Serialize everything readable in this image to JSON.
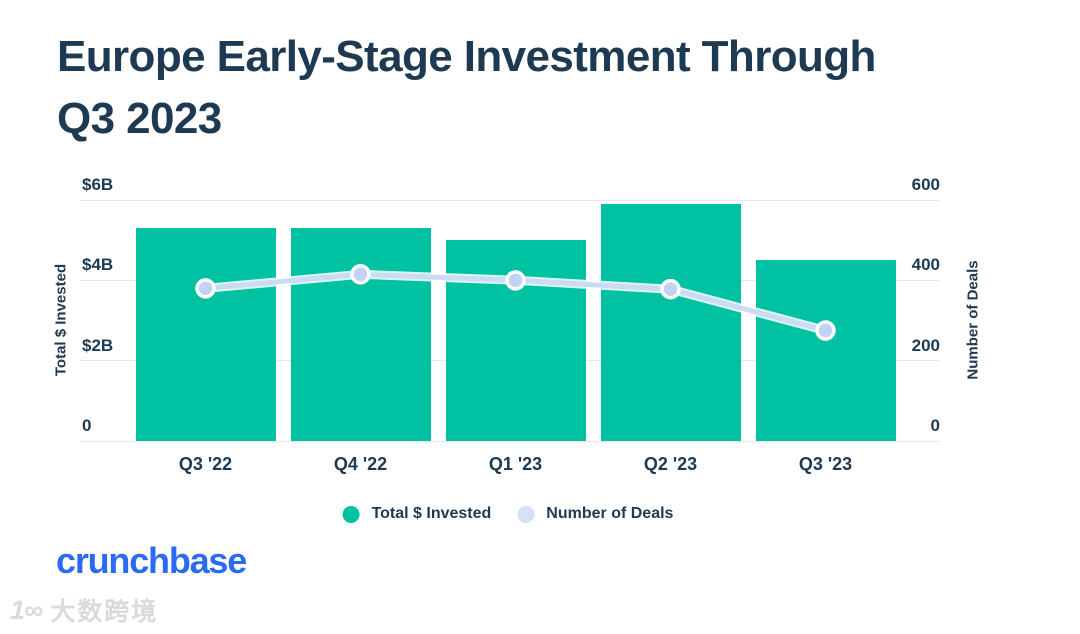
{
  "title": {
    "text": "Europe Early-Stage Investment Through Q3 2023",
    "line1": "Europe Early-Stage Investment Through",
    "line2": "Q3 2023"
  },
  "chart_data": {
    "type": "combo",
    "title": "Europe Early-Stage Investment Through Q3 2023",
    "categories": [
      "Q3 '22",
      "Q4 '22",
      "Q1 '23",
      "Q2 '23",
      "Q3 '23"
    ],
    "series": [
      {
        "name": "Total $ Invested",
        "chart": "bar",
        "axis": "left",
        "unit": "USD billions",
        "values": [
          5.3,
          5.3,
          5.0,
          5.9,
          4.5
        ],
        "color": "#00c1a2"
      },
      {
        "name": "Number of Deals",
        "chart": "line",
        "axis": "right",
        "unit": "deals",
        "values": [
          380,
          415,
          400,
          378,
          275
        ],
        "color": "#ccd9f7",
        "point_color": "#c3d1f5",
        "point_stroke": "#ffffff"
      }
    ],
    "left_axis": {
      "label": "Total $ Invested",
      "min": 0,
      "max": 6,
      "ticks": [
        {
          "value": 6,
          "label": "$6B"
        },
        {
          "value": 4,
          "label": "$4B"
        },
        {
          "value": 2,
          "label": "$2B"
        },
        {
          "value": 0,
          "label": "0"
        }
      ]
    },
    "right_axis": {
      "label": "Number of Deals",
      "min": 0,
      "max": 600,
      "ticks": [
        {
          "value": 600,
          "label": "600"
        },
        {
          "value": 400,
          "label": "400"
        },
        {
          "value": 200,
          "label": "200"
        },
        {
          "value": 0,
          "label": "0"
        }
      ]
    },
    "grid": true,
    "legend_position": "bottom"
  },
  "legend": {
    "items": [
      {
        "label": "Total $ Invested",
        "color": "#00c1a2"
      },
      {
        "label": "Number of Deals",
        "color": "#d6e0f8"
      }
    ]
  },
  "brand": {
    "name": "crunchbase",
    "color": "#2b6bf3"
  },
  "watermark": {
    "logo": "1∞",
    "text": "大数跨境"
  },
  "colors": {
    "navy": "#1d3a52",
    "teal": "#00c1a2",
    "line": "#ccd9f7",
    "point": "#c3d1f5",
    "grid": "#e9e9e9",
    "brand_blue": "#2b6bf3",
    "watermark_gray": "#d9d9d9",
    "background": "#ffffff"
  }
}
